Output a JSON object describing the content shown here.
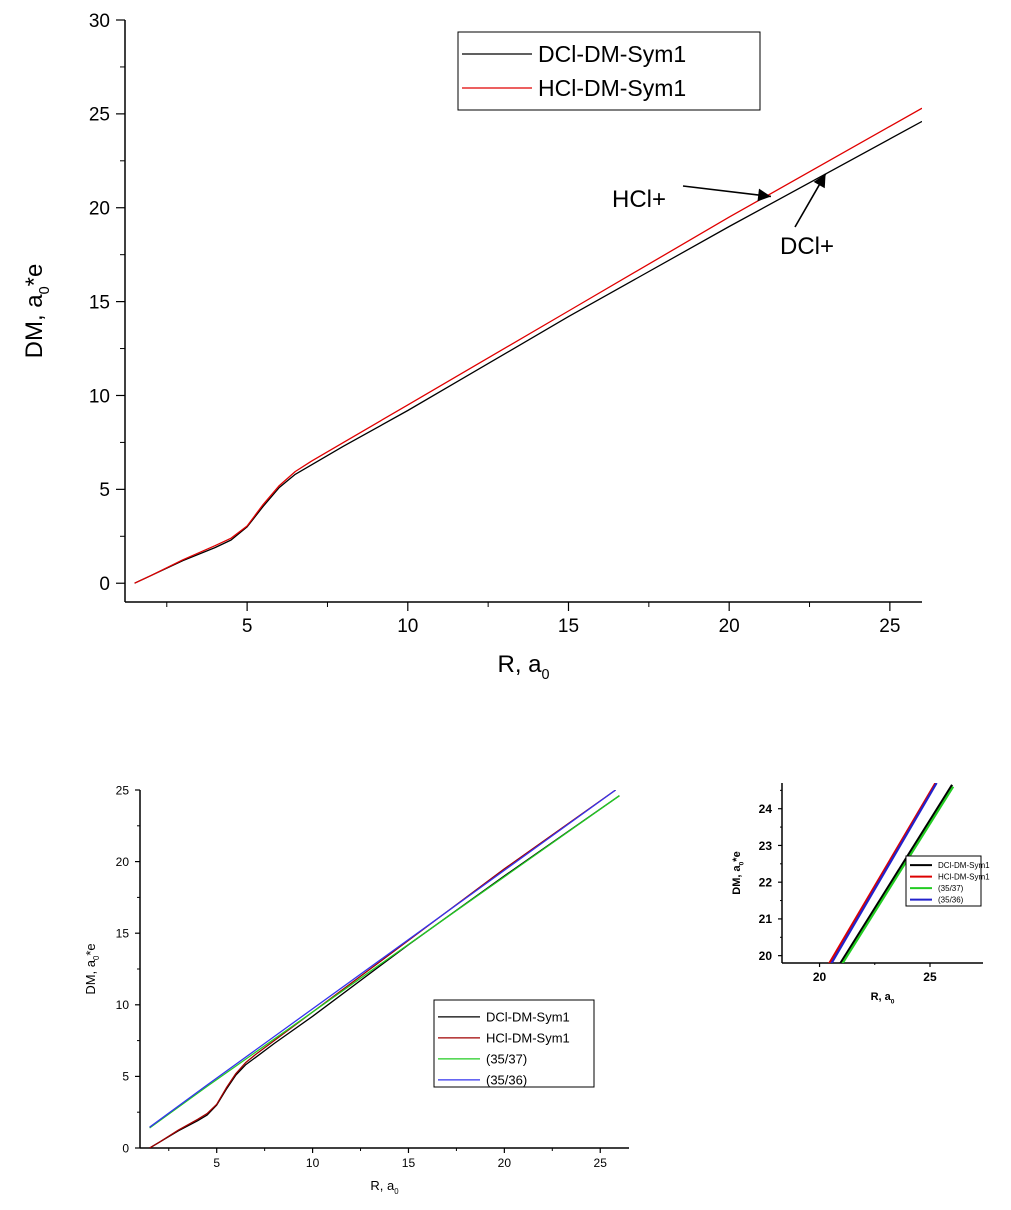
{
  "chart_data": [
    {
      "type": "line",
      "xlabel": "R, a",
      "xlabel_sub": "0",
      "ylabel": "DM, a",
      "ylabel_sub": "0",
      "ylabel_rest": "*e",
      "xlim": [
        1.2,
        26
      ],
      "ylim": [
        -1,
        30
      ],
      "xticks": [
        5,
        10,
        15,
        20,
        25
      ],
      "yticks": [
        0,
        5,
        10,
        15,
        20,
        25,
        30
      ],
      "grid": false,
      "legend_position": "top-right",
      "series": [
        {
          "name": "DCl-DM-Sym1",
          "color": "#000000",
          "x": [
            1.5,
            2,
            3,
            4,
            4.5,
            5,
            5.5,
            6,
            6.5,
            7,
            8,
            10,
            15,
            20,
            26
          ],
          "y": [
            0.0,
            0.4,
            1.2,
            1.9,
            2.3,
            3.0,
            4.1,
            5.1,
            5.8,
            6.3,
            7.3,
            9.2,
            14.2,
            19.0,
            24.6
          ]
        },
        {
          "name": "HCl-DM-Sym1",
          "color": "#e00000",
          "x": [
            1.5,
            2,
            3,
            4,
            4.5,
            5,
            5.5,
            6,
            6.5,
            7,
            8,
            10,
            15,
            20,
            26
          ],
          "y": [
            0.0,
            0.4,
            1.25,
            2.0,
            2.4,
            3.05,
            4.2,
            5.2,
            5.95,
            6.5,
            7.5,
            9.5,
            14.5,
            19.5,
            25.3
          ]
        }
      ],
      "annotations": [
        {
          "text": "HCl+",
          "arrow_to": [
            21.3,
            20.6
          ]
        },
        {
          "text": "DCl+",
          "arrow_to": [
            23.0,
            21.8
          ]
        }
      ]
    },
    {
      "type": "line",
      "xlabel": "R, a",
      "xlabel_sub": "0",
      "ylabel": "DM, a",
      "ylabel_sub": "0",
      "ylabel_rest": "*e",
      "xlim": [
        1,
        26.5
      ],
      "ylim": [
        0,
        25
      ],
      "xticks": [
        5,
        10,
        15,
        20,
        25
      ],
      "yticks": [
        0,
        5,
        10,
        15,
        20,
        25
      ],
      "grid": false,
      "legend_position": "bottom-right",
      "series": [
        {
          "name": "DCl-DM-Sym1",
          "color": "#000000",
          "x": [
            1.5,
            2,
            3,
            4,
            4.5,
            5,
            5.5,
            6,
            6.5,
            7,
            8,
            10,
            15,
            20,
            26
          ],
          "y": [
            0.0,
            0.4,
            1.2,
            1.9,
            2.3,
            3.0,
            4.1,
            5.1,
            5.8,
            6.3,
            7.3,
            9.2,
            14.2,
            19.0,
            24.6
          ]
        },
        {
          "name": "HCl-DM-Sym1",
          "color": "#a00000",
          "x": [
            1.5,
            2,
            3,
            4,
            4.5,
            5,
            5.5,
            6,
            6.5,
            7,
            8,
            10,
            15,
            20,
            25.8
          ],
          "y": [
            0.0,
            0.4,
            1.25,
            2.0,
            2.4,
            3.05,
            4.2,
            5.2,
            5.95,
            6.5,
            7.5,
            9.5,
            14.5,
            19.5,
            25.0
          ]
        },
        {
          "name": "(35/37)",
          "color": "#22cc22",
          "x": [
            1.5,
            4.5,
            26
          ],
          "y": [
            1.4,
            4.3,
            24.6
          ]
        },
        {
          "name": "(35/36)",
          "color": "#3333ee",
          "x": [
            1.5,
            4.5,
            25.8
          ],
          "y": [
            1.45,
            4.4,
            25.0
          ]
        }
      ]
    },
    {
      "type": "line",
      "xlabel": "R, a",
      "xlabel_sub": "0",
      "ylabel": "DM, a",
      "ylabel_sub": "0",
      "ylabel_rest": "*e",
      "xlim": [
        18.3,
        27.4
      ],
      "ylim": [
        19.8,
        24.7
      ],
      "xticks": [
        20,
        25
      ],
      "yticks": [
        20,
        21,
        22,
        23,
        24
      ],
      "grid": false,
      "legend_position": "bottom-right",
      "series": [
        {
          "name": "DCl-DM-Sym1",
          "color": "#000000",
          "x": [
            20.9,
            26
          ],
          "y": [
            19.75,
            24.65
          ]
        },
        {
          "name": "HCl-DM-Sym1",
          "color": "#dd0000",
          "x": [
            20.4,
            25.25
          ],
          "y": [
            19.75,
            24.7
          ]
        },
        {
          "name": "(35/37)",
          "color": "#22cc22",
          "x": [
            21.0,
            26.05
          ],
          "y": [
            19.75,
            24.6
          ]
        },
        {
          "name": "(35/36)",
          "color": "#2222cc",
          "x": [
            20.5,
            25.3
          ],
          "y": [
            19.75,
            24.7
          ]
        }
      ]
    }
  ]
}
